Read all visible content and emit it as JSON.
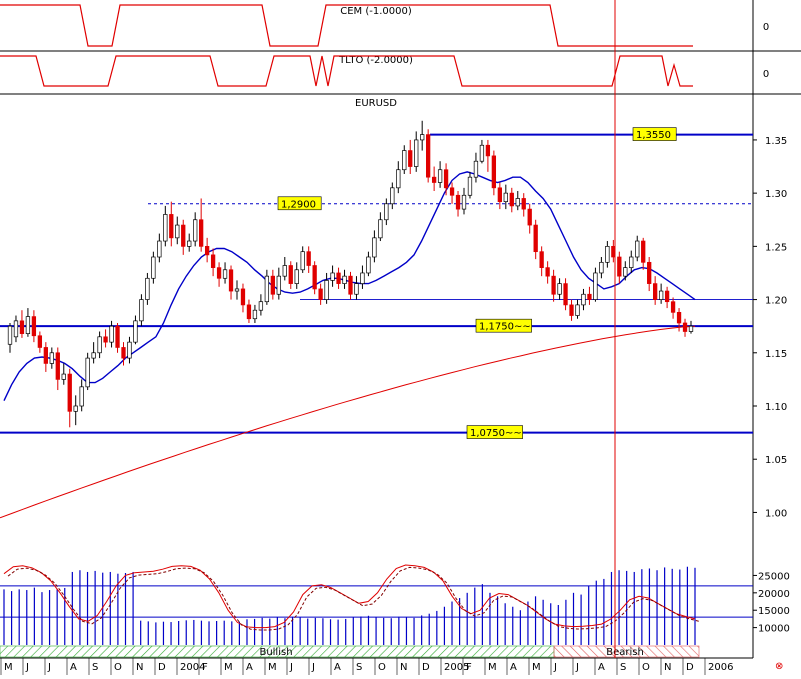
{
  "chart_data": [
    {
      "type": "line",
      "title": "CEM (-1.0000)",
      "y_tick_labels": [
        "0"
      ],
      "color": "#e00000"
    },
    {
      "type": "line",
      "title": "TLTO (-2.0000)",
      "y_tick_labels": [
        "0"
      ],
      "color": "#e00000"
    },
    {
      "type": "candlestick",
      "title": "EURUSD",
      "ylim": [
        0.96,
        1.38
      ],
      "y_tick_labels": [
        "1.35",
        "1.30",
        "1.25",
        "1.20",
        "1.15",
        "1.10",
        "1.05",
        "1.00"
      ],
      "y_ticks": [
        1.35,
        1.3,
        1.25,
        1.2,
        1.15,
        1.1,
        1.05,
        1.0
      ],
      "levels": [
        {
          "label": "1,3550",
          "value": 1.355,
          "style": "solid"
        },
        {
          "label": "1,2900",
          "value": 1.29,
          "style": "dashed"
        },
        {
          "label": "1,1750~~",
          "value": 1.175,
          "style": "solid"
        },
        {
          "label": "1,0750~~",
          "value": 1.075,
          "style": "solid"
        }
      ],
      "thin_levels": [
        1.2
      ],
      "candles": [
        [
          1.158,
          1.175,
          1.15,
          1.178
        ],
        [
          1.165,
          1.18,
          1.16,
          1.185
        ],
        [
          1.18,
          1.168,
          1.164,
          1.19
        ],
        [
          1.168,
          1.184,
          1.165,
          1.192
        ],
        [
          1.184,
          1.166,
          1.16,
          1.19
        ],
        [
          1.166,
          1.155,
          1.15,
          1.17
        ],
        [
          1.155,
          1.14,
          1.132,
          1.16
        ],
        [
          1.14,
          1.15,
          1.135,
          1.155
        ],
        [
          1.15,
          1.125,
          1.115,
          1.155
        ],
        [
          1.125,
          1.13,
          1.12,
          1.14
        ],
        [
          1.13,
          1.095,
          1.08,
          1.135
        ],
        [
          1.095,
          1.1,
          1.082,
          1.11
        ],
        [
          1.1,
          1.118,
          1.095,
          1.125
        ],
        [
          1.118,
          1.145,
          1.115,
          1.15
        ],
        [
          1.145,
          1.15,
          1.14,
          1.16
        ],
        [
          1.15,
          1.165,
          1.145,
          1.17
        ],
        [
          1.165,
          1.16,
          1.155,
          1.172
        ],
        [
          1.16,
          1.175,
          1.155,
          1.18
        ],
        [
          1.175,
          1.155,
          1.15,
          1.178
        ],
        [
          1.155,
          1.145,
          1.138,
          1.16
        ],
        [
          1.145,
          1.16,
          1.14,
          1.165
        ],
        [
          1.16,
          1.18,
          1.158,
          1.185
        ],
        [
          1.18,
          1.2,
          1.175,
          1.205
        ],
        [
          1.2,
          1.22,
          1.195,
          1.225
        ],
        [
          1.22,
          1.24,
          1.215,
          1.245
        ],
        [
          1.24,
          1.255,
          1.235,
          1.262
        ],
        [
          1.255,
          1.28,
          1.25,
          1.288
        ],
        [
          1.28,
          1.258,
          1.25,
          1.292
        ],
        [
          1.258,
          1.27,
          1.252,
          1.278
        ],
        [
          1.27,
          1.25,
          1.242,
          1.275
        ],
        [
          1.25,
          1.255,
          1.245,
          1.262
        ],
        [
          1.255,
          1.275,
          1.25,
          1.282
        ],
        [
          1.275,
          1.25,
          1.245,
          1.295
        ],
        [
          1.25,
          1.242,
          1.235,
          1.258
        ],
        [
          1.242,
          1.23,
          1.222,
          1.248
        ],
        [
          1.23,
          1.22,
          1.212,
          1.235
        ],
        [
          1.22,
          1.228,
          1.215,
          1.235
        ],
        [
          1.228,
          1.208,
          1.2,
          1.232
        ],
        [
          1.208,
          1.21,
          1.2,
          1.218
        ],
        [
          1.21,
          1.195,
          1.188,
          1.215
        ],
        [
          1.195,
          1.182,
          1.178,
          1.2
        ],
        [
          1.182,
          1.19,
          1.178,
          1.195
        ],
        [
          1.19,
          1.198,
          1.185,
          1.205
        ],
        [
          1.198,
          1.222,
          1.195,
          1.228
        ],
        [
          1.222,
          1.205,
          1.2,
          1.228
        ],
        [
          1.205,
          1.222,
          1.2,
          1.23
        ],
        [
          1.222,
          1.232,
          1.218,
          1.24
        ],
        [
          1.232,
          1.215,
          1.21,
          1.236
        ],
        [
          1.215,
          1.228,
          1.21,
          1.235
        ],
        [
          1.228,
          1.245,
          1.225,
          1.25
        ],
        [
          1.245,
          1.232,
          1.225,
          1.25
        ],
        [
          1.232,
          1.21,
          1.205,
          1.236
        ],
        [
          1.21,
          1.2,
          1.195,
          1.215
        ],
        [
          1.2,
          1.218,
          1.196,
          1.225
        ],
        [
          1.218,
          1.225,
          1.212,
          1.232
        ],
        [
          1.225,
          1.215,
          1.21,
          1.23
        ],
        [
          1.215,
          1.222,
          1.21,
          1.228
        ],
        [
          1.222,
          1.205,
          1.2,
          1.226
        ],
        [
          1.205,
          1.215,
          1.2,
          1.222
        ],
        [
          1.215,
          1.225,
          1.21,
          1.232
        ],
        [
          1.225,
          1.24,
          1.222,
          1.245
        ],
        [
          1.24,
          1.258,
          1.235,
          1.265
        ],
        [
          1.258,
          1.275,
          1.255,
          1.282
        ],
        [
          1.275,
          1.29,
          1.27,
          1.295
        ],
        [
          1.29,
          1.305,
          1.285,
          1.31
        ],
        [
          1.305,
          1.322,
          1.3,
          1.33
        ],
        [
          1.322,
          1.34,
          1.318,
          1.345
        ],
        [
          1.34,
          1.325,
          1.318,
          1.35
        ],
        [
          1.325,
          1.35,
          1.32,
          1.358
        ],
        [
          1.35,
          1.355,
          1.34,
          1.368
        ],
        [
          1.355,
          1.315,
          1.31,
          1.36
        ],
        [
          1.315,
          1.31,
          1.302,
          1.325
        ],
        [
          1.31,
          1.322,
          1.305,
          1.33
        ],
        [
          1.322,
          1.305,
          1.298,
          1.328
        ],
        [
          1.305,
          1.298,
          1.29,
          1.31
        ],
        [
          1.298,
          1.285,
          1.278,
          1.302
        ],
        [
          1.285,
          1.298,
          1.28,
          1.305
        ],
        [
          1.298,
          1.315,
          1.295,
          1.32
        ],
        [
          1.315,
          1.33,
          1.31,
          1.338
        ],
        [
          1.33,
          1.345,
          1.328,
          1.35
        ],
        [
          1.345,
          1.335,
          1.32,
          1.35
        ],
        [
          1.335,
          1.305,
          1.298,
          1.34
        ],
        [
          1.305,
          1.292,
          1.285,
          1.31
        ],
        [
          1.292,
          1.3,
          1.285,
          1.308
        ],
        [
          1.3,
          1.288,
          1.282,
          1.305
        ],
        [
          1.288,
          1.295,
          1.284,
          1.302
        ],
        [
          1.295,
          1.285,
          1.278,
          1.3
        ],
        [
          1.285,
          1.27,
          1.262,
          1.29
        ],
        [
          1.27,
          1.245,
          1.238,
          1.275
        ],
        [
          1.245,
          1.23,
          1.222,
          1.25
        ],
        [
          1.23,
          1.222,
          1.215,
          1.236
        ],
        [
          1.222,
          1.205,
          1.198,
          1.228
        ],
        [
          1.205,
          1.215,
          1.2,
          1.22
        ],
        [
          1.215,
          1.195,
          1.19,
          1.22
        ],
        [
          1.195,
          1.185,
          1.18,
          1.2
        ],
        [
          1.185,
          1.195,
          1.182,
          1.2
        ],
        [
          1.195,
          1.205,
          1.19,
          1.21
        ],
        [
          1.205,
          1.2,
          1.195,
          1.212
        ],
        [
          1.2,
          1.225,
          1.198,
          1.23
        ],
        [
          1.225,
          1.235,
          1.22,
          1.24
        ],
        [
          1.235,
          1.25,
          1.23,
          1.255
        ],
        [
          1.25,
          1.24,
          1.235,
          1.256
        ],
        [
          1.24,
          1.222,
          1.215,
          1.245
        ],
        [
          1.222,
          1.23,
          1.218,
          1.236
        ],
        [
          1.23,
          1.24,
          1.225,
          1.246
        ],
        [
          1.24,
          1.255,
          1.236,
          1.26
        ],
        [
          1.255,
          1.235,
          1.228,
          1.258
        ],
        [
          1.235,
          1.215,
          1.208,
          1.24
        ],
        [
          1.215,
          1.2,
          1.195,
          1.222
        ],
        [
          1.2,
          1.208,
          1.196,
          1.215
        ],
        [
          1.208,
          1.198,
          1.192,
          1.212
        ],
        [
          1.198,
          1.188,
          1.182,
          1.202
        ],
        [
          1.188,
          1.178,
          1.17,
          1.192
        ],
        [
          1.178,
          1.17,
          1.165,
          1.182
        ],
        [
          1.17,
          1.175,
          1.168,
          1.18
        ]
      ],
      "ma_short": [
        1.105,
        1.12,
        1.132,
        1.14,
        1.145,
        1.146,
        1.145,
        1.143,
        1.14,
        1.135,
        1.128,
        1.122,
        1.122,
        1.126,
        1.132,
        1.138,
        1.145,
        1.15,
        1.155,
        1.16,
        1.165,
        1.178,
        1.195,
        1.21,
        1.222,
        1.232,
        1.24,
        1.245,
        1.248,
        1.248,
        1.245,
        1.24,
        1.235,
        1.228,
        1.222,
        1.215,
        1.21,
        1.207,
        1.206,
        1.207,
        1.21,
        1.214,
        1.218,
        1.22,
        1.22,
        1.218,
        1.216,
        1.215,
        1.215,
        1.218,
        1.222,
        1.226,
        1.23,
        1.235,
        1.242,
        1.255,
        1.27,
        1.285,
        1.3,
        1.312,
        1.318,
        1.32,
        1.318,
        1.315,
        1.312,
        1.31,
        1.312,
        1.315,
        1.315,
        1.31,
        1.302,
        1.295,
        1.285,
        1.27,
        1.255,
        1.24,
        1.228,
        1.22,
        1.215,
        1.21,
        1.212,
        1.215,
        1.222,
        1.228,
        1.23,
        1.229,
        1.225,
        1.22,
        1.215,
        1.21,
        1.205,
        1.2
      ],
      "ma_long": [
        0.995,
        1.175
      ],
      "cursor_month_index": 28,
      "months": [
        "M",
        "J",
        "J",
        "A",
        "S",
        "O",
        "N",
        "D",
        "2004",
        "F",
        "M",
        "A",
        "M",
        "J",
        "J",
        "A",
        "S",
        "O",
        "N",
        "D",
        "2005",
        "F",
        "M",
        "A",
        "M",
        "J",
        "J",
        "A",
        "S",
        "O",
        "N",
        "D",
        "2006"
      ]
    },
    {
      "type": "bar",
      "title": "",
      "y_tick_labels": [
        "25000",
        "20000",
        "15000",
        "10000"
      ],
      "y_ticks": [
        25000,
        20000,
        15000,
        10000
      ],
      "ylim": [
        5000,
        28000
      ],
      "volume": [
        21000,
        20500,
        21000,
        20800,
        21500,
        20200,
        20800,
        21000,
        21400,
        26000,
        26500,
        26000,
        26300,
        25800,
        26000,
        25500,
        25700,
        26000,
        12000,
        11800,
        11500,
        11700,
        11600,
        11900,
        12100,
        12200,
        12000,
        11800,
        11900,
        12000,
        11800,
        11700,
        12400,
        12500,
        12800,
        12600,
        13000,
        12700,
        13100,
        12900,
        12600,
        12800,
        12700,
        12400,
        12300,
        12500,
        12900,
        13200,
        13400,
        13000,
        12800,
        12700,
        13100,
        13000,
        12800,
        13500,
        14000,
        14800,
        16000,
        17500,
        18500,
        20000,
        21500,
        22500,
        20000,
        19000,
        17000,
        16000,
        15000,
        17500,
        19000,
        18000,
        17000,
        16500,
        18000,
        20000,
        19500,
        22000,
        23500,
        24000,
        26000,
        26500,
        26300,
        26000,
        26800,
        27000,
        26500,
        27300,
        26900,
        26700,
        27500,
        27200
      ],
      "oscillator_solid": [
        25500,
        27500,
        27800,
        27200,
        25800,
        23500,
        20000,
        16000,
        12500,
        11800,
        13500,
        17500,
        22000,
        25000,
        25800,
        26000,
        26200,
        26800,
        27600,
        27800,
        27600,
        26500,
        24000,
        20000,
        15000,
        11500,
        10200,
        10000,
        10000,
        10300,
        11500,
        14500,
        19500,
        22000,
        22300,
        21500,
        20000,
        18500,
        17000,
        17500,
        20000,
        24000,
        27000,
        28000,
        27800,
        27300,
        26000,
        23500,
        19000,
        15500,
        14000,
        15000,
        18500,
        19800,
        19500,
        18000,
        16500,
        14500,
        12500,
        11000,
        10500,
        10300,
        10400,
        10600,
        11000,
        12500,
        15000,
        18000,
        19000,
        18500,
        17000,
        15500,
        14000,
        13200,
        12500
      ],
      "oscillator_dashed_offset": 700,
      "hlines": [
        22000,
        13000
      ],
      "trend_bands": [
        {
          "label": "Bullish",
          "style": "bullish"
        },
        {
          "label": "Bearish",
          "style": "bearish"
        }
      ]
    }
  ]
}
